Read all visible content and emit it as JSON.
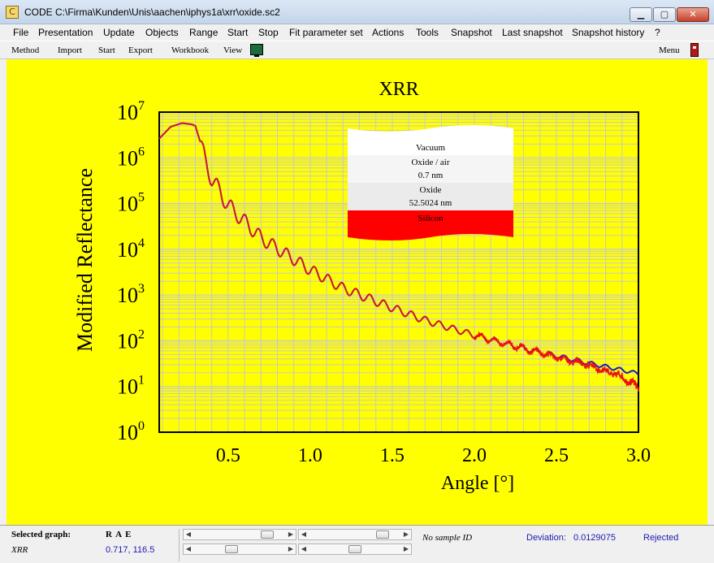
{
  "window": {
    "title": "CODE C:\\Firma\\Kunden\\Unis\\aachen\\iphys1a\\xrr\\oxide.sc2",
    "icon": "code-app-icon",
    "minimize_glyph": "▁",
    "maximize_glyph": "▢",
    "close_glyph": "✕"
  },
  "menubar": {
    "items": [
      "File",
      "Presentation",
      "Update",
      "Objects",
      "Range",
      "Start",
      "Stop",
      "Fit parameter set",
      "Actions",
      "Tools",
      "Snapshot",
      "Last snapshot",
      "Snapshot history",
      "?"
    ]
  },
  "toolbar": {
    "items": [
      "Method",
      "Import",
      "Start",
      "Export",
      "Workbook",
      "View"
    ],
    "menu_label": "Menu"
  },
  "layer_stack": {
    "layers": [
      "Vacuum",
      "Oxide / air",
      "0.7 nm",
      "Oxide",
      "52.5024 nm",
      "Silicon"
    ]
  },
  "colors": {
    "canvas_bg": "#ffff00",
    "simulated": "#1a1acc",
    "measured": "#ee1111",
    "grid": "#c8c8c8",
    "silicon": "#ff0000"
  },
  "chart_data": {
    "type": "line",
    "title": "XRR",
    "xlabel": "Angle [°]",
    "ylabel": "Modified Reflectance",
    "xlim": [
      0.08,
      3.0
    ],
    "ylim_exponent": [
      0,
      7
    ],
    "log_y": true,
    "grid": true,
    "x_ticks": [
      "0.5",
      "1.0",
      "1.5",
      "2.0",
      "2.5",
      "3.0"
    ],
    "x_tick_values": [
      0.5,
      1.0,
      1.5,
      2.0,
      2.5,
      3.0
    ],
    "y_tick_base": "10",
    "y_tick_exponents": [
      "0",
      "1",
      "2",
      "3",
      "4",
      "5",
      "6",
      "7"
    ],
    "series": [
      {
        "role": "simulated",
        "color": "#1a1acc",
        "x": [
          0.08,
          0.15,
          0.22,
          0.28,
          0.3,
          0.31,
          0.33,
          0.36,
          0.4,
          0.5,
          0.7,
          1.0,
          1.2,
          1.5,
          1.7,
          2.0,
          2.3,
          2.5,
          2.7,
          2.9,
          3.0
        ],
        "log10_y": [
          6.42,
          6.68,
          6.76,
          6.73,
          6.7,
          6.58,
          6.35,
          5.92,
          5.55,
          4.96,
          4.25,
          3.55,
          3.15,
          2.72,
          2.45,
          2.12,
          1.83,
          1.67,
          1.51,
          1.36,
          1.28
        ]
      },
      {
        "role": "measured",
        "color": "#ee1111",
        "x": [
          0.08,
          0.15,
          0.22,
          0.28,
          0.3,
          0.31,
          0.33,
          0.36,
          0.4,
          0.5,
          0.7,
          1.0,
          1.2,
          1.5,
          1.7,
          2.0,
          2.3,
          2.5,
          2.7,
          2.9,
          3.0
        ],
        "log10_y": [
          6.42,
          6.68,
          6.76,
          6.73,
          6.7,
          6.58,
          6.35,
          5.92,
          5.55,
          4.96,
          4.25,
          3.55,
          3.15,
          2.72,
          2.45,
          2.12,
          1.83,
          1.65,
          1.46,
          1.21,
          0.98
        ]
      }
    ]
  },
  "status": {
    "selected_graph_label": "Selected graph:",
    "rae": "R  A  E",
    "graph_name": "XRR",
    "coords": "0.717, 116.5",
    "sample_id": "No sample ID",
    "deviation_label": "Deviation:",
    "deviation_value": "0.0129075",
    "result": "Rejected",
    "slider1_pos": 0.85,
    "slider2_pos": 0.85,
    "slider3_pos": 0.4,
    "slider4_pos": 0.5
  }
}
